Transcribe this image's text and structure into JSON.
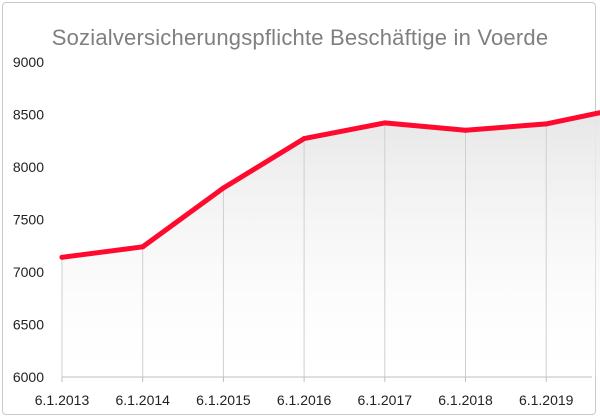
{
  "chart_data": {
    "type": "area",
    "title": "Sozialversicherungspflichte Beschäftige in Voerde",
    "xlabel": "",
    "ylabel": "",
    "categories": [
      "6.1.2013",
      "6.1.2014",
      "6.1.2015",
      "6.1.2016",
      "6.1.2017",
      "6.1.2018",
      "6.1.2019",
      ""
    ],
    "values": [
      7140,
      7240,
      7800,
      8270,
      8420,
      8350,
      8410,
      8570
    ],
    "ylim": [
      6000,
      9000
    ],
    "yticks": [
      "6000",
      "6500",
      "7000",
      "7500",
      "8000",
      "8500",
      "9000"
    ],
    "grid": "vertical",
    "colors": {
      "line": "#ff0a2e",
      "fill_top": "#e6e6e6",
      "fill_bottom": "#ffffff",
      "grid": "#cfcfcf"
    }
  }
}
